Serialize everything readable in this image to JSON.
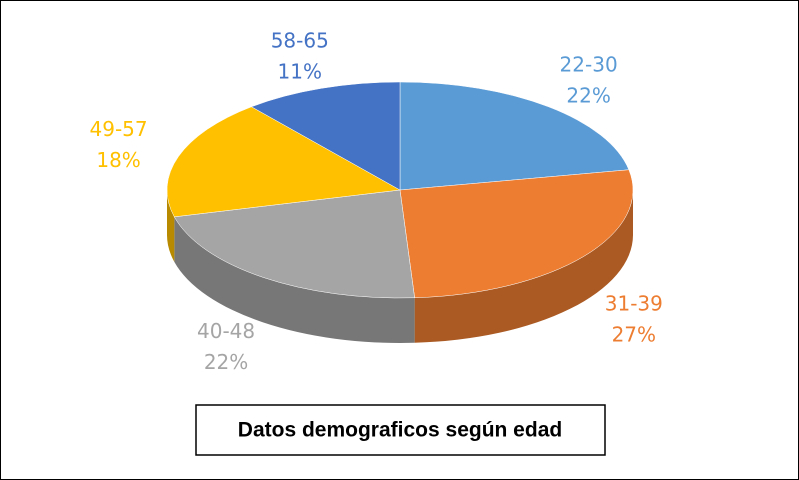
{
  "chart_data": {
    "type": "pie3d",
    "title": "Datos demograficos según edad",
    "categories": [
      "22-30",
      "31-39",
      "40-48",
      "49-57",
      "58-65"
    ],
    "values": [
      22,
      27,
      22,
      18,
      11
    ],
    "value_labels": [
      "22%",
      "27%",
      "22%",
      "18%",
      "11%"
    ],
    "colors": [
      "#5b9bd5",
      "#ed7d31",
      "#a5a5a5",
      "#ffc000",
      "#4472c4"
    ]
  }
}
